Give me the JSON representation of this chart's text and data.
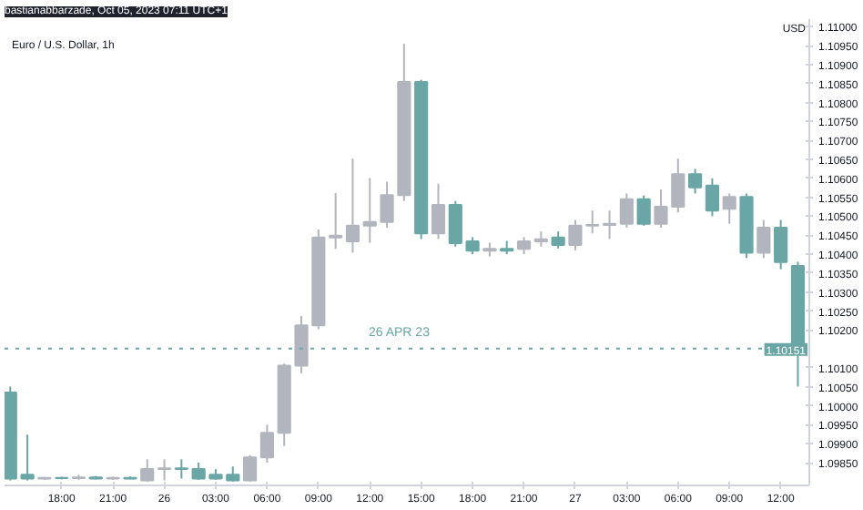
{
  "chart_data": {
    "type": "candlestick",
    "title": "Euro / U.S. Dollar, 1h",
    "subtitle": "bastianabbarzade, Oct 05, 2023 07:11 UTC+1",
    "ylabel": "USD",
    "annotations": [
      "26 APR 23"
    ],
    "x": [
      "2023-04-25T15:00",
      "2023-04-25T16:00",
      "2023-04-25T17:00",
      "2023-04-25T18:00",
      "2023-04-25T19:00",
      "2023-04-25T20:00",
      "2023-04-25T21:00",
      "2023-04-25T22:00",
      "2023-04-25T23:00",
      "2023-04-26T00:00",
      "2023-04-26T01:00",
      "2023-04-26T02:00",
      "2023-04-26T03:00",
      "2023-04-26T04:00",
      "2023-04-26T05:00",
      "2023-04-26T06:00",
      "2023-04-26T07:00",
      "2023-04-26T08:00",
      "2023-04-26T09:00",
      "2023-04-26T10:00",
      "2023-04-26T11:00",
      "2023-04-26T12:00",
      "2023-04-26T13:00",
      "2023-04-26T14:00",
      "2023-04-26T15:00",
      "2023-04-26T16:00",
      "2023-04-26T17:00",
      "2023-04-26T18:00",
      "2023-04-26T19:00",
      "2023-04-26T20:00",
      "2023-04-26T21:00",
      "2023-04-26T22:00",
      "2023-04-26T23:00",
      "2023-04-27T00:00",
      "2023-04-27T01:00",
      "2023-04-27T02:00",
      "2023-04-27T03:00",
      "2023-04-27T04:00",
      "2023-04-27T05:00",
      "2023-04-27T06:00",
      "2023-04-27T07:00",
      "2023-04-27T08:00",
      "2023-04-27T09:00",
      "2023-04-27T10:00",
      "2023-04-27T11:00",
      "2023-04-27T12:00",
      "2023-04-27T13:00"
    ],
    "ohlc": [
      [
        1.10035,
        1.10051,
        1.09803,
        1.09808
      ],
      [
        1.09818,
        1.09924,
        1.09803,
        1.09808
      ],
      [
        1.09808,
        1.09812,
        1.09805,
        1.0981
      ],
      [
        1.0981,
        1.09813,
        1.09806,
        1.09809
      ],
      [
        1.09809,
        1.09818,
        1.09805,
        1.09811
      ],
      [
        1.09811,
        1.09815,
        1.09806,
        1.09808
      ],
      [
        1.09808,
        1.09813,
        1.09805,
        1.0981
      ],
      [
        1.0981,
        1.09814,
        1.09806,
        1.09808
      ],
      [
        1.09803,
        1.09859,
        1.098,
        1.09833
      ],
      [
        1.09833,
        1.09859,
        1.09803,
        1.09835
      ],
      [
        1.09835,
        1.09859,
        1.09808,
        1.09833
      ],
      [
        1.09833,
        1.0985,
        1.09805,
        1.09808
      ],
      [
        1.09818,
        1.09833,
        1.09805,
        1.09808
      ],
      [
        1.09818,
        1.0984,
        1.098,
        1.09803
      ],
      [
        1.09803,
        1.0987,
        1.098,
        1.09864
      ],
      [
        1.09864,
        1.0995,
        1.0985,
        1.09929
      ],
      [
        1.09929,
        1.10111,
        1.09894,
        1.10106
      ],
      [
        1.10106,
        1.10237,
        1.10086,
        1.10212
      ],
      [
        1.10212,
        1.10465,
        1.10202,
        1.10444
      ],
      [
        1.10444,
        1.10561,
        1.10414,
        1.10449
      ],
      [
        1.10434,
        1.10652,
        1.10404,
        1.10475
      ],
      [
        1.10475,
        1.10601,
        1.1043,
        1.10485
      ],
      [
        1.10485,
        1.10591,
        1.1047,
        1.10556
      ],
      [
        1.10556,
        1.10955,
        1.1054,
        1.10854
      ],
      [
        1.10854,
        1.1086,
        1.1044,
        1.10455
      ],
      [
        1.10455,
        1.10586,
        1.1044,
        1.1053
      ],
      [
        1.1053,
        1.1054,
        1.1042,
        1.10429
      ],
      [
        1.10434,
        1.10445,
        1.104,
        1.10409
      ],
      [
        1.10409,
        1.1043,
        1.10394,
        1.10414
      ],
      [
        1.10414,
        1.10435,
        1.104,
        1.10409
      ],
      [
        1.10414,
        1.10445,
        1.104,
        1.10434
      ],
      [
        1.10434,
        1.1046,
        1.1042,
        1.10439
      ],
      [
        1.10444,
        1.1046,
        1.10415,
        1.10424
      ],
      [
        1.10424,
        1.1049,
        1.1041,
        1.10475
      ],
      [
        1.10475,
        1.10515,
        1.10455,
        1.10477
      ],
      [
        1.10477,
        1.10515,
        1.1044,
        1.1048
      ],
      [
        1.1048,
        1.1056,
        1.1047,
        1.10545
      ],
      [
        1.10545,
        1.10555,
        1.10475,
        1.1048
      ],
      [
        1.1048,
        1.10571,
        1.1047,
        1.10525
      ],
      [
        1.10525,
        1.10652,
        1.1051,
        1.10611
      ],
      [
        1.10611,
        1.10625,
        1.1056,
        1.10576
      ],
      [
        1.10581,
        1.106,
        1.105,
        1.10515
      ],
      [
        1.1052,
        1.1056,
        1.1048,
        1.10551
      ],
      [
        1.10551,
        1.1056,
        1.1039,
        1.10404
      ],
      [
        1.10404,
        1.1049,
        1.1039,
        1.1047
      ],
      [
        1.1047,
        1.1049,
        1.1036,
        1.10379
      ],
      [
        1.10369,
        1.1038,
        1.10051,
        1.10151
      ]
    ],
    "colors": [
      "#6aa6a6",
      "#6aa6a6",
      "#b2b5be",
      "#6aa6a6",
      "#b2b5be",
      "#6aa6a6",
      "#b2b5be",
      "#6aa6a6",
      "#b2b5be",
      "#b2b5be",
      "#6aa6a6",
      "#6aa6a6",
      "#6aa6a6",
      "#6aa6a6",
      "#b2b5be",
      "#b2b5be",
      "#b2b5be",
      "#b2b5be",
      "#b2b5be",
      "#b2b5be",
      "#b2b5be",
      "#b2b5be",
      "#b2b5be",
      "#b2b5be",
      "#6aa6a6",
      "#b2b5be",
      "#6aa6a6",
      "#6aa6a6",
      "#b2b5be",
      "#6aa6a6",
      "#b2b5be",
      "#b2b5be",
      "#6aa6a6",
      "#b2b5be",
      "#b2b5be",
      "#b2b5be",
      "#b2b5be",
      "#6aa6a6",
      "#b2b5be",
      "#b2b5be",
      "#6aa6a6",
      "#6aa6a6",
      "#b2b5be",
      "#6aa6a6",
      "#b2b5be",
      "#6aa6a6",
      "#6aa6a6"
    ],
    "xlim": [
      "2023-04-25T14:40",
      "2023-04-27T13:40"
    ],
    "xticks": [
      {
        "value": "2023-04-25T18:00",
        "label": "18:00"
      },
      {
        "value": "2023-04-25T21:00",
        "label": "21:00"
      },
      {
        "value": "2023-04-26T00:00",
        "label": "26"
      },
      {
        "value": "2023-04-26T03:00",
        "label": "03:00"
      },
      {
        "value": "2023-04-26T06:00",
        "label": "06:00"
      },
      {
        "value": "2023-04-26T09:00",
        "label": "09:00"
      },
      {
        "value": "2023-04-26T12:00",
        "label": "12:00"
      },
      {
        "value": "2023-04-26T15:00",
        "label": "15:00"
      },
      {
        "value": "2023-04-26T18:00",
        "label": "18:00"
      },
      {
        "value": "2023-04-26T21:00",
        "label": "21:00"
      },
      {
        "value": "2023-04-27T00:00",
        "label": "27"
      },
      {
        "value": "2023-04-27T03:00",
        "label": "03:00"
      },
      {
        "value": "2023-04-27T06:00",
        "label": "06:00"
      },
      {
        "value": "2023-04-27T09:00",
        "label": "09:00"
      },
      {
        "value": "2023-04-27T12:00",
        "label": "12:00"
      }
    ],
    "ylim": [
      1.0979,
      1.1102
    ],
    "yticks": [
      {
        "value": 1.11,
        "label": "1.11000"
      },
      {
        "value": 1.1095,
        "label": "1.10950"
      },
      {
        "value": 1.109,
        "label": "1.10900"
      },
      {
        "value": 1.1085,
        "label": "1.10850"
      },
      {
        "value": 1.108,
        "label": "1.10800"
      },
      {
        "value": 1.1075,
        "label": "1.10750"
      },
      {
        "value": 1.107,
        "label": "1.10700"
      },
      {
        "value": 1.1065,
        "label": "1.10650"
      },
      {
        "value": 1.106,
        "label": "1.10600"
      },
      {
        "value": 1.1055,
        "label": "1.10550"
      },
      {
        "value": 1.105,
        "label": "1.10500"
      },
      {
        "value": 1.1045,
        "label": "1.10450"
      },
      {
        "value": 1.104,
        "label": "1.10400"
      },
      {
        "value": 1.1035,
        "label": "1.10350"
      },
      {
        "value": 1.103,
        "label": "1.10300"
      },
      {
        "value": 1.1025,
        "label": "1.10250"
      },
      {
        "value": 1.102,
        "label": "1.10200"
      },
      {
        "value": 1.101,
        "label": "1.10100"
      },
      {
        "value": 1.1005,
        "label": "1.10050"
      },
      {
        "value": 1.1,
        "label": "1.10000"
      },
      {
        "value": 1.0995,
        "label": "1.09950"
      },
      {
        "value": 1.099,
        "label": "1.09900"
      },
      {
        "value": 1.0985,
        "label": "1.09850"
      }
    ],
    "ref_lines": [
      {
        "axis": "y",
        "value": 1.10151,
        "label": "1.10151",
        "color": "#6aa6a6",
        "line_style": "dotted"
      }
    ],
    "grid": false
  }
}
